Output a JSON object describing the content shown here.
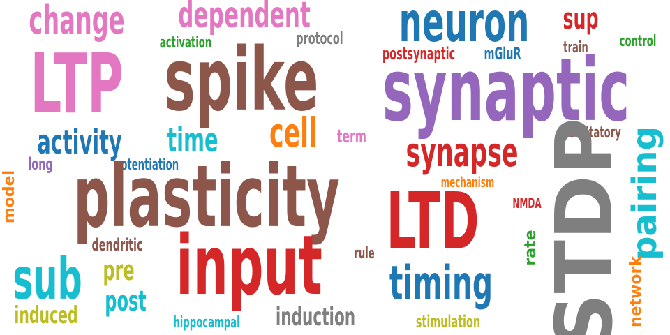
{
  "colors": {
    "background": "#ffffff",
    "pink": "#e377c2",
    "brown": "#8c564b",
    "blue": "#1f77b4",
    "purple": "#9467bd",
    "red": "#d62728",
    "orange": "#ff7f0e",
    "green": "#2ca02c",
    "gray": "#7f7f7f",
    "olive": "#bcbd22",
    "cyan": "#17becf"
  },
  "words": [
    {
      "text": "change",
      "color": "pink"
    },
    {
      "text": "dependent",
      "color": "pink"
    },
    {
      "text": "neuron",
      "color": "blue"
    },
    {
      "text": "sup",
      "color": "red"
    },
    {
      "text": "activation",
      "color": "green"
    },
    {
      "text": "protocol",
      "color": "gray"
    },
    {
      "text": "control",
      "color": "green"
    },
    {
      "text": "train",
      "color": "brown"
    },
    {
      "text": "postsynaptic",
      "color": "red"
    },
    {
      "text": "mGluR",
      "color": "blue"
    },
    {
      "text": "LTP",
      "color": "pink"
    },
    {
      "text": "spike",
      "color": "brown"
    },
    {
      "text": "synaptic",
      "color": "purple"
    },
    {
      "text": "activity",
      "color": "blue"
    },
    {
      "text": "time",
      "color": "cyan"
    },
    {
      "text": "cell",
      "color": "orange"
    },
    {
      "text": "term",
      "color": "pink"
    },
    {
      "text": "excitatory",
      "color": "brown"
    },
    {
      "text": "synapse",
      "color": "red"
    },
    {
      "text": "long",
      "color": "purple"
    },
    {
      "text": "potentiation",
      "color": "blue"
    },
    {
      "text": "STDP",
      "color": "gray"
    },
    {
      "text": "pairing",
      "color": "cyan"
    },
    {
      "text": "model",
      "color": "orange"
    },
    {
      "text": "plasticity",
      "color": "brown"
    },
    {
      "text": "mechanism",
      "color": "orange"
    },
    {
      "text": "LTD",
      "color": "red"
    },
    {
      "text": "NMDA",
      "color": "red"
    },
    {
      "text": "dendritic",
      "color": "brown"
    },
    {
      "text": "rule",
      "color": "brown"
    },
    {
      "text": "rate",
      "color": "green"
    },
    {
      "text": "input",
      "color": "red"
    },
    {
      "text": "sub",
      "color": "cyan"
    },
    {
      "text": "pre",
      "color": "olive"
    },
    {
      "text": "post",
      "color": "cyan"
    },
    {
      "text": "timing",
      "color": "blue"
    },
    {
      "text": "network",
      "color": "orange"
    },
    {
      "text": "induced",
      "color": "olive"
    },
    {
      "text": "hippocampal",
      "color": "cyan"
    },
    {
      "text": "induction",
      "color": "gray"
    },
    {
      "text": "stimulation",
      "color": "olive"
    }
  ]
}
